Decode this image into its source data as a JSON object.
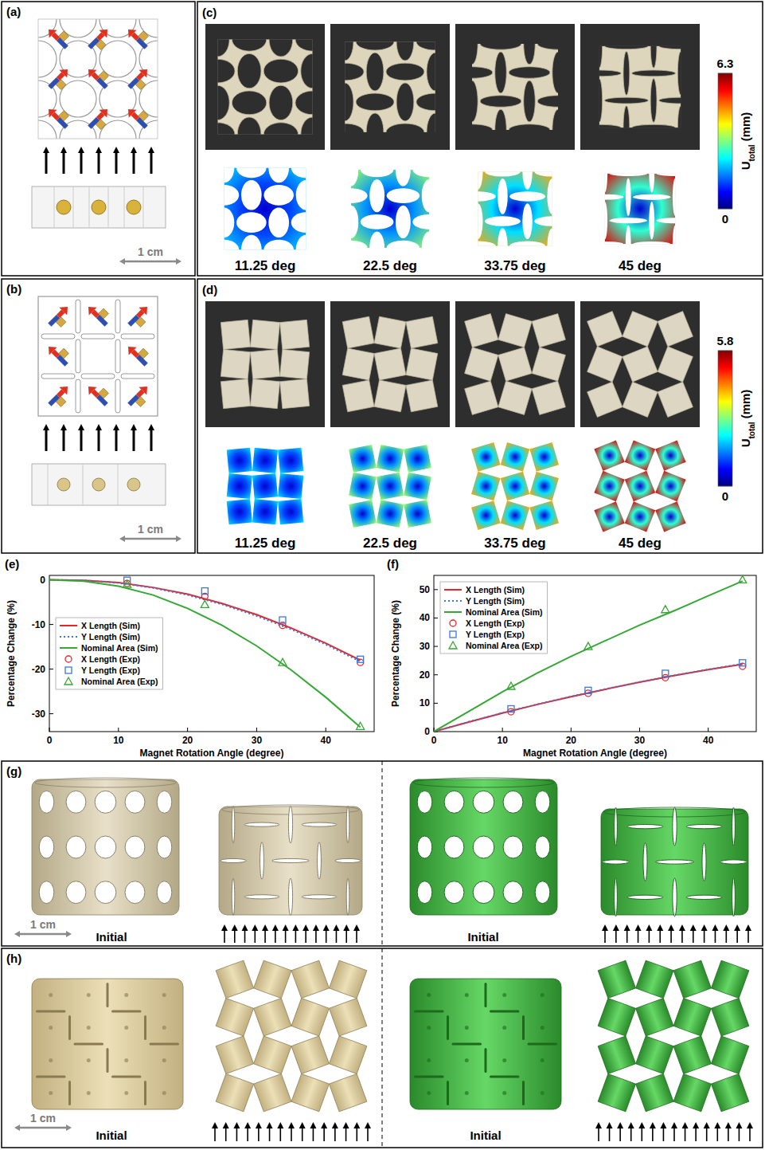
{
  "panels": {
    "a": {
      "label": "(a)",
      "scale_bar": "1 cm"
    },
    "b": {
      "label": "(b)",
      "scale_bar": "1 cm"
    },
    "c": {
      "label": "(c)",
      "angles": [
        {
          "value": 11.25,
          "label": "11.25 deg"
        },
        {
          "value": 22.5,
          "label": "22.5 deg"
        },
        {
          "value": 33.75,
          "label": "33.75 deg"
        },
        {
          "value": 45,
          "label": "45 deg"
        }
      ],
      "colorbar": {
        "title": "U",
        "title_subscript": "total",
        "unit": "(mm)",
        "range": [
          0,
          6.3
        ],
        "ticks": [
          0,
          6.3
        ]
      }
    },
    "d": {
      "label": "(d)",
      "angles": [
        {
          "value": 11.25,
          "label": "11.25 deg"
        },
        {
          "value": 22.5,
          "label": "22.5 deg"
        },
        {
          "value": 33.75,
          "label": "33.75 deg"
        },
        {
          "value": 45,
          "label": "45 deg"
        }
      ],
      "colorbar": {
        "title": "U",
        "title_subscript": "total",
        "unit": "(mm)",
        "range": [
          0,
          5.8
        ],
        "ticks": [
          0,
          5.8
        ]
      }
    },
    "e": {
      "label": "(e)"
    },
    "f": {
      "label": "(f)"
    },
    "g": {
      "label": "(g)",
      "scale_bar": "1 cm",
      "captions": [
        "Initial",
        "Initial"
      ]
    },
    "h": {
      "label": "(h)",
      "scale_bar": "1 cm",
      "captions": [
        "Initial",
        "Initial"
      ]
    }
  },
  "chart_data": [
    {
      "type": "line",
      "xlabel": "Magnet Rotation Angle (degree)",
      "ylabel": "Percentage Change (%)",
      "xlim": [
        0,
        47
      ],
      "xticks": [
        0,
        10,
        20,
        30,
        40
      ],
      "ylim": [
        -34,
        1
      ],
      "yticks": [
        -30,
        -20,
        -10,
        0
      ],
      "grid": false,
      "legend": "center left",
      "series": [
        {
          "name": "X Length (Sim)",
          "type": "line",
          "line_style": "solid",
          "color": "#e8262a",
          "x": [
            0,
            5,
            10,
            15,
            20,
            25,
            30,
            35,
            40,
            45
          ],
          "values": [
            0,
            -0.1,
            -0.6,
            -1.7,
            -3.2,
            -5.3,
            -7.8,
            -10.8,
            -14.2,
            -18
          ]
        },
        {
          "name": "Y Length (Sim)",
          "type": "line",
          "line_style": "dotted",
          "color": "#3c78d8",
          "x": [
            0,
            5,
            10,
            15,
            20,
            25,
            30,
            35,
            40,
            45
          ],
          "values": [
            0,
            -0.1,
            -0.7,
            -1.8,
            -3.4,
            -5.5,
            -8.1,
            -11.1,
            -14.5,
            -18.3
          ]
        },
        {
          "name": "Nominal Area (Sim)",
          "type": "line",
          "line_style": "solid",
          "color": "#35a835",
          "x": [
            0,
            5,
            10,
            15,
            20,
            25,
            30,
            35,
            40,
            45
          ],
          "values": [
            0,
            -0.3,
            -1.4,
            -3.4,
            -6.4,
            -10.2,
            -14.8,
            -20.2,
            -26.3,
            -33
          ]
        },
        {
          "name": "X Length (Exp)",
          "type": "scatter",
          "marker": "circle",
          "color": "#e8262a",
          "x": [
            11.25,
            22.5,
            33.75,
            45
          ],
          "values": [
            -0.8,
            -3.7,
            -10.2,
            -18.5
          ]
        },
        {
          "name": "Y Length (Exp)",
          "type": "scatter",
          "marker": "square",
          "color": "#3c78d8",
          "x": [
            11.25,
            22.5,
            33.75,
            45
          ],
          "values": [
            -0.1,
            -2.5,
            -9,
            -17.8
          ]
        },
        {
          "name": "Nominal Area (Exp)",
          "type": "scatter",
          "marker": "triangle",
          "color": "#35a835",
          "x": [
            11.25,
            22.5,
            33.75,
            45
          ],
          "values": [
            -1,
            -5.5,
            -18.5,
            -32.8
          ]
        }
      ]
    },
    {
      "type": "line",
      "xlabel": "Magnet Rotation Angle (degree)",
      "ylabel": "Percentage Change (%)",
      "xlim": [
        0,
        47
      ],
      "xticks": [
        0,
        10,
        20,
        30,
        40
      ],
      "ylim": [
        0,
        55
      ],
      "yticks": [
        0,
        10,
        20,
        30,
        40,
        50
      ],
      "grid": false,
      "legend": "upper left",
      "series": [
        {
          "name": "X Length (Sim)",
          "type": "line",
          "line_style": "solid",
          "color": "#e8262a",
          "x": [
            0,
            5,
            10,
            15,
            20,
            25,
            30,
            35,
            40,
            45
          ],
          "values": [
            0,
            3.3,
            6.5,
            9.5,
            12.3,
            14.9,
            17.4,
            19.7,
            21.8,
            23.7
          ]
        },
        {
          "name": "Y Length (Sim)",
          "type": "line",
          "line_style": "dotted",
          "color": "#3c78d8",
          "x": [
            0,
            5,
            10,
            15,
            20,
            25,
            30,
            35,
            40,
            45
          ],
          "values": [
            0,
            3.4,
            6.6,
            9.6,
            12.4,
            15,
            17.5,
            19.8,
            21.9,
            23.9
          ]
        },
        {
          "name": "Nominal Area (Sim)",
          "type": "line",
          "line_style": "solid",
          "color": "#35a835",
          "x": [
            0,
            5,
            10,
            15,
            20,
            25,
            30,
            35,
            40,
            45
          ],
          "values": [
            0,
            7,
            14,
            20.5,
            26.5,
            32,
            37.5,
            42.5,
            47.8,
            53
          ]
        },
        {
          "name": "X Length (Exp)",
          "type": "scatter",
          "marker": "circle",
          "color": "#e8262a",
          "x": [
            11.25,
            22.5,
            33.75,
            45
          ],
          "values": [
            7,
            13.5,
            19,
            23
          ]
        },
        {
          "name": "Y Length (Exp)",
          "type": "scatter",
          "marker": "square",
          "color": "#3c78d8",
          "x": [
            11.25,
            22.5,
            33.75,
            45
          ],
          "values": [
            8,
            14.5,
            20.5,
            24.2
          ]
        },
        {
          "name": "Nominal Area (Exp)",
          "type": "scatter",
          "marker": "triangle",
          "color": "#35a835",
          "x": [
            11.25,
            22.5,
            33.75,
            45
          ],
          "values": [
            16,
            30,
            43,
            53.5
          ]
        }
      ]
    }
  ]
}
